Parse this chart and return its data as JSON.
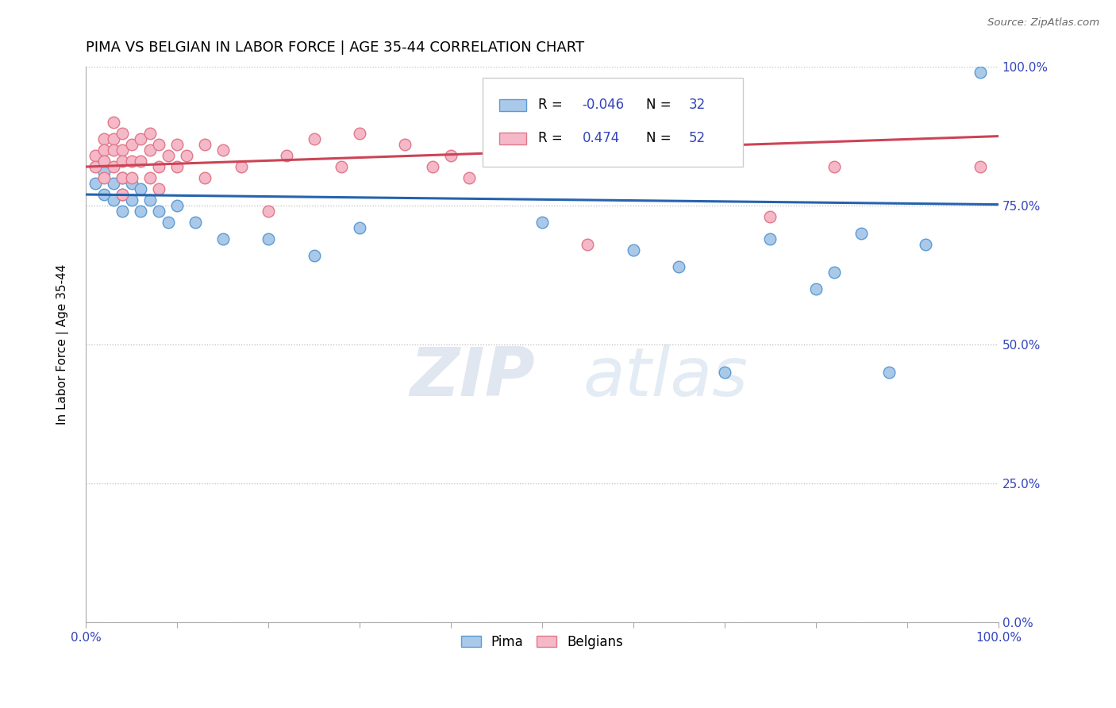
{
  "title": "PIMA VS BELGIAN IN LABOR FORCE | AGE 35-44 CORRELATION CHART",
  "source_text": "Source: ZipAtlas.com",
  "ylabel": "In Labor Force | Age 35-44",
  "watermark_zip": "ZIP",
  "watermark_atlas": "atlas",
  "xlim": [
    0.0,
    1.0
  ],
  "ylim": [
    0.0,
    1.0
  ],
  "ytick_labels": [
    "0.0%",
    "25.0%",
    "50.0%",
    "75.0%",
    "100.0%"
  ],
  "ytick_values": [
    0.0,
    0.25,
    0.5,
    0.75,
    1.0
  ],
  "pima_color": "#aac9e8",
  "pima_edge_color": "#5b9bd5",
  "belgians_color": "#f5b8c8",
  "belgians_edge_color": "#e07888",
  "pima_line_color": "#2563ae",
  "belgians_line_color": "#cc4455",
  "legend_r_pima": "-0.046",
  "legend_n_pima": "32",
  "legend_r_belgians": "0.474",
  "legend_n_belgians": "52",
  "pima_x": [
    0.01,
    0.02,
    0.02,
    0.03,
    0.03,
    0.04,
    0.04,
    0.04,
    0.05,
    0.05,
    0.06,
    0.06,
    0.07,
    0.08,
    0.09,
    0.1,
    0.12,
    0.15,
    0.2,
    0.25,
    0.3,
    0.5,
    0.6,
    0.65,
    0.7,
    0.75,
    0.8,
    0.82,
    0.85,
    0.88,
    0.92,
    0.98
  ],
  "pima_y": [
    0.79,
    0.81,
    0.77,
    0.79,
    0.76,
    0.8,
    0.77,
    0.74,
    0.79,
    0.76,
    0.78,
    0.74,
    0.76,
    0.74,
    0.72,
    0.75,
    0.72,
    0.69,
    0.69,
    0.66,
    0.71,
    0.72,
    0.67,
    0.64,
    0.45,
    0.69,
    0.6,
    0.63,
    0.7,
    0.45,
    0.68,
    0.99
  ],
  "belgians_x": [
    0.01,
    0.01,
    0.02,
    0.02,
    0.02,
    0.02,
    0.03,
    0.03,
    0.03,
    0.03,
    0.04,
    0.04,
    0.04,
    0.04,
    0.04,
    0.05,
    0.05,
    0.05,
    0.06,
    0.06,
    0.07,
    0.07,
    0.07,
    0.08,
    0.08,
    0.08,
    0.09,
    0.1,
    0.1,
    0.11,
    0.13,
    0.13,
    0.15,
    0.17,
    0.2,
    0.22,
    0.25,
    0.28,
    0.3,
    0.35,
    0.38,
    0.4,
    0.42,
    0.45,
    0.55,
    0.6,
    0.65,
    0.68,
    0.7,
    0.75,
    0.82,
    0.98
  ],
  "belgians_y": [
    0.84,
    0.82,
    0.87,
    0.85,
    0.83,
    0.8,
    0.9,
    0.87,
    0.85,
    0.82,
    0.88,
    0.85,
    0.83,
    0.8,
    0.77,
    0.86,
    0.83,
    0.8,
    0.87,
    0.83,
    0.88,
    0.85,
    0.8,
    0.86,
    0.82,
    0.78,
    0.84,
    0.86,
    0.82,
    0.84,
    0.86,
    0.8,
    0.85,
    0.82,
    0.74,
    0.84,
    0.87,
    0.82,
    0.88,
    0.86,
    0.82,
    0.84,
    0.8,
    0.86,
    0.68,
    0.86,
    0.84,
    0.88,
    0.86,
    0.73,
    0.82,
    0.82
  ],
  "title_fontsize": 13,
  "axis_label_fontsize": 11,
  "tick_fontsize": 11
}
